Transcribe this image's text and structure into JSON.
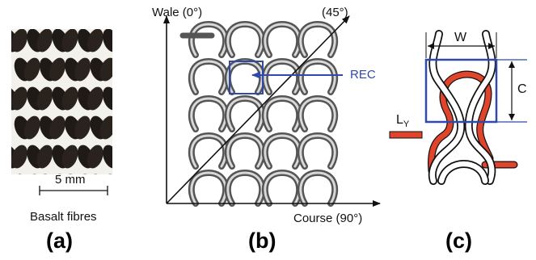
{
  "panel_a": {
    "scale_label": "5 mm",
    "caption": "Basalt fibres",
    "letter": "(a)"
  },
  "panel_b": {
    "wale_label": "Wale (0°)",
    "diagonal_label": "(45°)",
    "course_label": "Course (90°)",
    "rec_label": "REC",
    "letter": "(b)"
  },
  "panel_c": {
    "w_label": "W",
    "c_label": "C",
    "ly_main": "L",
    "ly_sub": "Y",
    "letter": "(c)"
  },
  "colors": {
    "accent_blue": "#2f4aa8",
    "yarn_red": "#e0452b",
    "loop_grey": "#777777"
  }
}
